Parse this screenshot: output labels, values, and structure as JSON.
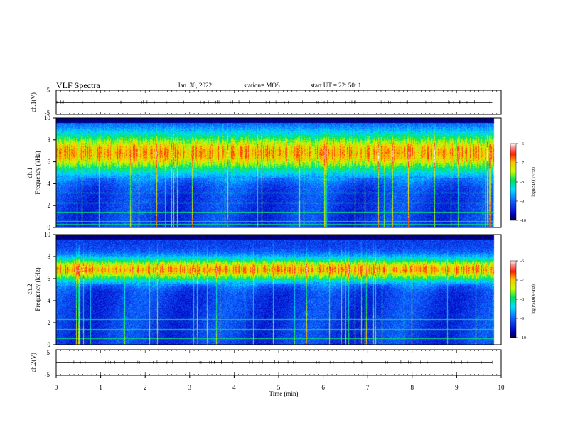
{
  "header": {
    "title": "VLF Spectra",
    "date": "Jan. 30, 2022",
    "station": "station= MOS",
    "start": "start  UT  =   22: 50: 1"
  },
  "chart_data": [
    {
      "type": "line",
      "panel": "ch1-waveform",
      "ylabel": "ch.1(V)",
      "ylim": [
        -5,
        5
      ],
      "yticks": [
        "5",
        "-5"
      ],
      "xlim": [
        0,
        10
      ],
      "series": [
        {
          "values_note": "flat trace",
          "x": [
            0,
            9.8
          ],
          "y": [
            0,
            0
          ]
        }
      ]
    },
    {
      "type": "heatmap",
      "panel": "ch1-spectrogram",
      "ylabel": "ch.1",
      "ylabel2": "Frequency (kHz)",
      "ylim": [
        0,
        10
      ],
      "yticks": [
        "0",
        "2",
        "4",
        "6",
        "8",
        "10"
      ],
      "xlim": [
        0,
        10
      ],
      "colorbar": {
        "label": "log(PSD)(V²/Hz)",
        "range": [
          -10,
          -6
        ],
        "ticks": [
          "-6",
          "-7",
          "-8",
          "-9",
          "-10"
        ]
      },
      "band_peak_khz": [
        4.5,
        9.2
      ],
      "spectral_lines_khz": [
        0.3,
        0.6,
        1.4,
        2.3,
        3.2
      ]
    },
    {
      "type": "heatmap",
      "panel": "ch2-spectrogram",
      "ylabel": "ch.2",
      "ylabel2": "Frequency (kHz)",
      "ylim": [
        0,
        10
      ],
      "yticks": [
        "0",
        "2",
        "4",
        "6",
        "8",
        "10"
      ],
      "xlim": [
        0,
        10
      ],
      "colorbar": {
        "label": "log(PSD)(V²/Hz)",
        "range": [
          -10,
          -6
        ],
        "ticks": [
          "-6",
          "-7",
          "-8",
          "-9",
          "-10"
        ]
      },
      "band_peak_khz": [
        5.5,
        8.2
      ],
      "spectral_lines_khz": [
        0.6,
        1.4,
        2.3
      ]
    },
    {
      "type": "line",
      "panel": "ch2-waveform",
      "ylabel": "ch.2(V)",
      "ylim": [
        -5,
        5
      ],
      "yticks": [
        "5",
        "-5"
      ],
      "xlabel": "Time  (min)",
      "xticks": [
        "0",
        "1",
        "2",
        "3",
        "4",
        "5",
        "6",
        "7",
        "8",
        "9",
        "10"
      ],
      "xlim": [
        0,
        10
      ],
      "series": [
        {
          "values_note": "flat trace",
          "x": [
            0,
            9.8
          ],
          "y": [
            0,
            0
          ]
        }
      ]
    }
  ]
}
